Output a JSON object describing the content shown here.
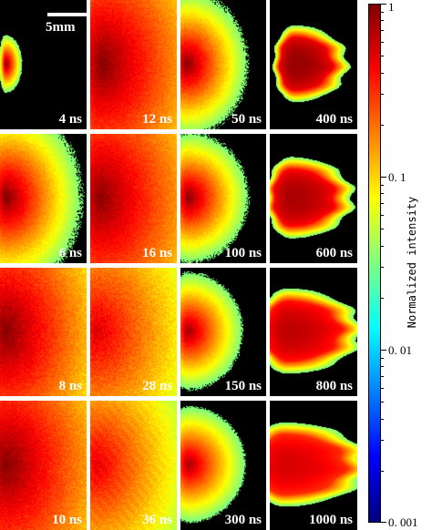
{
  "scale_bar": {
    "label": "5mm"
  },
  "panels": [
    {
      "label": "4 ns",
      "row": 0,
      "col": 0,
      "origin_x": 0.06,
      "reach": 0.12,
      "spread": 0.14,
      "peak": 1.0,
      "noise": 0.12,
      "shape": "cloud"
    },
    {
      "label": "12 ns",
      "row": 0,
      "col": 1,
      "origin_x": 0.12,
      "reach": 1.05,
      "spread": 0.95,
      "peak": 1.0,
      "noise": 0.35,
      "shape": "cloud"
    },
    {
      "label": "50 ns",
      "row": 0,
      "col": 2,
      "origin_x": 0.06,
      "reach": 0.45,
      "spread": 0.35,
      "peak": 1.0,
      "noise": 0.3,
      "shape": "cloud"
    },
    {
      "label": "400 ns",
      "row": 0,
      "col": 3,
      "origin_x": 0.28,
      "reach": 0.42,
      "spread": 0.26,
      "peak": 0.85,
      "noise": 0.05,
      "shape": "blob"
    },
    {
      "label": "6 ns",
      "row": 1,
      "col": 0,
      "origin_x": 0.06,
      "reach": 0.55,
      "spread": 0.45,
      "peak": 1.0,
      "noise": 0.3,
      "shape": "cloud"
    },
    {
      "label": "16 ns",
      "row": 1,
      "col": 1,
      "origin_x": 0.1,
      "reach": 1.1,
      "spread": 1.0,
      "peak": 0.95,
      "noise": 0.35,
      "shape": "cloud"
    },
    {
      "label": "100 ns",
      "row": 1,
      "col": 2,
      "origin_x": 0.08,
      "reach": 0.45,
      "spread": 0.32,
      "peak": 0.95,
      "noise": 0.25,
      "shape": "cloud"
    },
    {
      "label": "600 ns",
      "row": 1,
      "col": 3,
      "origin_x": 0.24,
      "reach": 0.5,
      "spread": 0.28,
      "peak": 0.75,
      "noise": 0.05,
      "shape": "blob"
    },
    {
      "label": "8 ns",
      "row": 2,
      "col": 0,
      "origin_x": 0.05,
      "reach": 1.0,
      "spread": 0.95,
      "peak": 1.0,
      "noise": 0.4,
      "shape": "cloud"
    },
    {
      "label": "28 ns",
      "row": 2,
      "col": 1,
      "origin_x": 0.06,
      "reach": 1.1,
      "spread": 1.0,
      "peak": 0.55,
      "noise": 0.45,
      "shape": "cloud"
    },
    {
      "label": "150 ns",
      "row": 2,
      "col": 2,
      "origin_x": 0.08,
      "reach": 0.42,
      "spread": 0.3,
      "peak": 0.85,
      "noise": 0.2,
      "shape": "cloud"
    },
    {
      "label": "800 ns",
      "row": 2,
      "col": 3,
      "origin_x": 0.2,
      "reach": 0.6,
      "spread": 0.3,
      "peak": 0.65,
      "noise": 0.05,
      "shape": "blob"
    },
    {
      "label": "10 ns",
      "row": 3,
      "col": 0,
      "origin_x": 0.05,
      "reach": 1.1,
      "spread": 1.0,
      "peak": 1.0,
      "noise": 0.4,
      "shape": "cloud"
    },
    {
      "label": "36 ns",
      "row": 3,
      "col": 1,
      "origin_x": 0.06,
      "reach": 1.0,
      "spread": 0.9,
      "peak": 0.5,
      "noise": 0.45,
      "shape": "cloud"
    },
    {
      "label": "300 ns",
      "row": 3,
      "col": 2,
      "origin_x": 0.08,
      "reach": 0.45,
      "spread": 0.3,
      "peak": 0.8,
      "noise": 0.15,
      "shape": "cloud"
    },
    {
      "label": "1000 ns",
      "row": 3,
      "col": 3,
      "origin_x": 0.16,
      "reach": 0.7,
      "spread": 0.3,
      "peak": 0.55,
      "noise": 0.05,
      "shape": "blob"
    }
  ],
  "colorbar": {
    "title": "Normalized intensity",
    "scale": "log",
    "range": [
      0.001,
      1
    ],
    "colormap": [
      "#00007f",
      "#0000ff",
      "#007fff",
      "#00ffff",
      "#7fff7f",
      "#ffff00",
      "#ff7f00",
      "#ff0000",
      "#7f0000"
    ],
    "ticks": [
      {
        "value": 1,
        "label": "1"
      },
      {
        "value": 0.1,
        "label": "0. 1"
      },
      {
        "value": 0.01,
        "label": "0. 01"
      },
      {
        "value": 0.001,
        "label": "0. 001"
      }
    ]
  }
}
